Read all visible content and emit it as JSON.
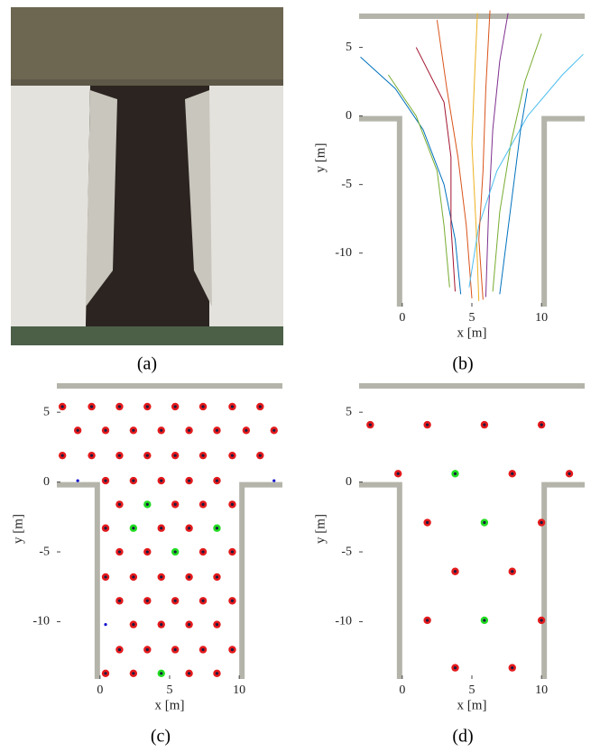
{
  "photo": {
    "caption": "(a)"
  },
  "chart_data": [
    {
      "type": "line",
      "caption": "(b)",
      "xlabel": "x [m]",
      "ylabel": "y [m]",
      "xlim": [
        -3.1,
        13.1
      ],
      "ylim": [
        -13.9,
        7.8
      ],
      "xticks": [
        0,
        5,
        10
      ],
      "yticks": [
        5,
        0,
        -5,
        -10
      ],
      "series": [
        {
          "color": "#0072BD",
          "x": [
            4.2,
            3.8,
            3.0,
            1.5,
            -0.5,
            -3.0
          ],
          "y": [
            -13,
            -9,
            -5,
            -1,
            2,
            4.3
          ]
        },
        {
          "color": "#D95319",
          "x": [
            5.0,
            4.6,
            4.0,
            3.2,
            2.5
          ],
          "y": [
            -13.3,
            -8,
            -3,
            2,
            7
          ]
        },
        {
          "color": "#EDB120",
          "x": [
            5.5,
            5.3,
            5.0,
            5.2,
            5.4
          ],
          "y": [
            -13.5,
            -8,
            -2,
            3,
            7.5
          ]
        },
        {
          "color": "#7E2F8E",
          "x": [
            6.0,
            6.2,
            6.5,
            7.0,
            7.6
          ],
          "y": [
            -13.2,
            -7,
            -1,
            4,
            7.5
          ]
        },
        {
          "color": "#77AC30",
          "x": [
            6.5,
            7.0,
            7.8,
            8.8,
            10.0
          ],
          "y": [
            -12.8,
            -7,
            -2,
            2.5,
            6
          ]
        },
        {
          "color": "#4DBEEE",
          "x": [
            4.8,
            5.5,
            6.8,
            9.0,
            11.5,
            13.0
          ],
          "y": [
            -12.5,
            -8,
            -4,
            0,
            3,
            4.5
          ]
        },
        {
          "color": "#A2142F",
          "x": [
            3.8,
            3.5,
            3.5,
            3.0,
            1.0
          ],
          "y": [
            -12.8,
            -8,
            -3,
            1,
            5
          ]
        },
        {
          "color": "#0072BD",
          "x": [
            7.0,
            7.5,
            8.0,
            8.5,
            9.0
          ],
          "y": [
            -13,
            -9,
            -5,
            -1,
            2
          ]
        },
        {
          "color": "#D95319",
          "x": [
            5.8,
            5.5,
            5.8,
            6.0,
            6.3
          ],
          "y": [
            -13.4,
            -9,
            -4,
            2,
            7.7
          ]
        },
        {
          "color": "#77AC30",
          "x": [
            3.4,
            3.0,
            2.5,
            1.0,
            -1.0
          ],
          "y": [
            -12.5,
            -8,
            -4,
            0,
            3
          ]
        }
      ]
    },
    {
      "type": "scatter",
      "caption": "(c)",
      "xlabel": "x [m]",
      "ylabel": "y [m]",
      "xlim": [
        -3.1,
        13.1
      ],
      "ylim": [
        -14.1,
        7.4
      ],
      "xticks": [
        0,
        5,
        10
      ],
      "yticks": [
        5,
        0,
        -5,
        -10
      ],
      "series": [
        {
          "color": "#e41a1c",
          "marker": "ring",
          "x": [
            -2.7,
            -0.6,
            1.4,
            3.4,
            5.4,
            7.4,
            9.5,
            11.5,
            -1.6,
            0.4,
            2.4,
            4.4,
            6.4,
            8.4,
            10.5,
            12.5,
            -2.7,
            -0.6,
            1.4,
            3.4,
            5.4,
            7.4,
            9.5,
            11.5,
            0.4,
            2.4,
            4.4,
            6.4,
            8.4,
            1.4,
            5.4,
            7.4,
            9.5,
            0.4,
            4.4,
            6.4,
            1.4,
            3.4,
            7.4,
            9.5,
            0.4,
            2.4,
            4.4,
            6.4,
            8.4,
            1.4,
            3.4,
            5.4,
            7.4,
            9.5,
            2.4,
            4.4,
            6.4,
            8.4,
            1.4,
            3.4,
            5.4,
            7.4,
            9.5,
            0.4,
            2.4,
            6.4,
            8.4
          ],
          "y": [
            5.4,
            5.4,
            5.4,
            5.4,
            5.4,
            5.4,
            5.4,
            5.4,
            3.7,
            3.7,
            3.7,
            3.7,
            3.7,
            3.7,
            3.7,
            3.7,
            1.9,
            1.9,
            1.9,
            1.9,
            1.9,
            1.9,
            1.9,
            1.9,
            0.1,
            0.1,
            0.1,
            0.1,
            0.1,
            -1.6,
            -1.6,
            -1.6,
            -1.6,
            -3.3,
            -3.3,
            -3.3,
            -5.0,
            -5.0,
            -5.0,
            -5.0,
            -6.8,
            -6.8,
            -6.8,
            -6.8,
            -6.8,
            -8.5,
            -8.5,
            -8.5,
            -8.5,
            -8.5,
            -10.2,
            -10.2,
            -10.2,
            -10.2,
            -12.0,
            -12.0,
            -12.0,
            -12.0,
            -12.0,
            -13.7,
            -13.7,
            -13.7,
            -13.7
          ]
        },
        {
          "color": "#22dd22",
          "marker": "ring",
          "x": [
            3.4,
            2.4,
            8.4,
            5.4,
            4.4
          ],
          "y": [
            -1.6,
            -3.3,
            -3.3,
            -5.0,
            -13.7
          ]
        },
        {
          "color": "#1010cc",
          "marker": "dot",
          "x": [
            -1.6,
            12.5,
            0.4
          ],
          "y": [
            0.1,
            0.1,
            -10.2
          ]
        }
      ]
    },
    {
      "type": "scatter",
      "caption": "(d)",
      "xlabel": "x [m]",
      "ylabel": "y [m]",
      "xlim": [
        -3.1,
        13.1
      ],
      "ylim": [
        -14.1,
        7.4
      ],
      "xticks": [
        0,
        5,
        10
      ],
      "yticks": [
        5,
        0,
        -5,
        -10
      ],
      "series": [
        {
          "color": "#e41a1c",
          "marker": "ring",
          "x": [
            -2.3,
            1.8,
            5.9,
            10.0,
            -0.3,
            7.9,
            12.0,
            1.8,
            10.0,
            3.8,
            7.9,
            1.8,
            10.0,
            3.8,
            7.9
          ],
          "y": [
            4.1,
            4.1,
            4.1,
            4.1,
            0.6,
            0.6,
            0.6,
            -2.9,
            -2.9,
            -6.4,
            -6.4,
            -9.9,
            -9.9,
            -13.3,
            -13.3
          ]
        },
        {
          "color": "#22dd22",
          "marker": "ring",
          "x": [
            3.8,
            5.9,
            5.9
          ],
          "y": [
            0.6,
            -2.9,
            -9.9
          ]
        }
      ]
    }
  ]
}
